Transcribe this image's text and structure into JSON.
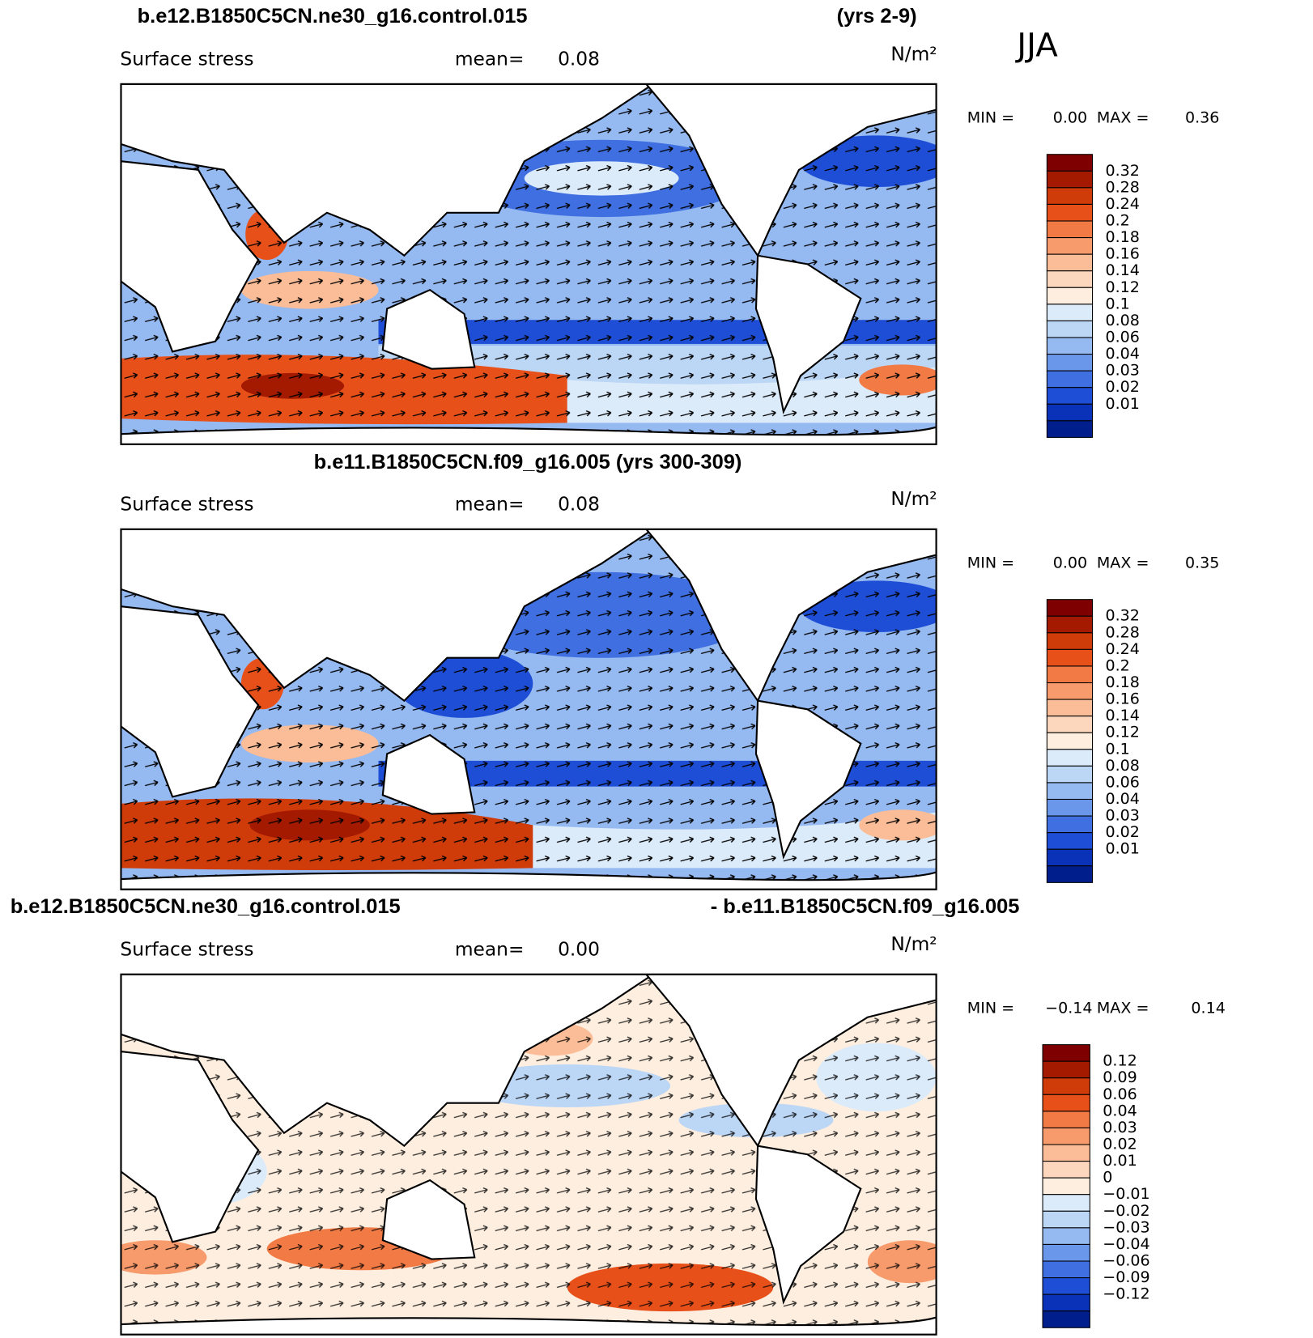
{
  "season": "JJA",
  "panels": [
    {
      "title": "b.e12.B1850C5CN.ne30_g16.control.015",
      "title_note": "(yrs 2-9)",
      "variable": "Surface stress",
      "mean_label": "mean=",
      "mean": "0.08",
      "units": "N/m²",
      "min_label": "MIN =",
      "min": "0.00",
      "max_label": "MAX =",
      "max": "0.36",
      "colorbar": {
        "labels": [
          "0.32",
          "0.28",
          "0.24",
          "0.2",
          "0.18",
          "0.16",
          "0.14",
          "0.12",
          "0.1",
          "0.08",
          "0.06",
          "0.04",
          "0.03",
          "0.02",
          "0.01"
        ],
        "colors": [
          "#7f0000",
          "#a31a00",
          "#d03b0a",
          "#e8501a",
          "#f27a45",
          "#f79a6c",
          "#fbbd97",
          "#fdd7bd",
          "#fdeedf",
          "#dcebfa",
          "#bcd6f6",
          "#95b9f1",
          "#6b97ea",
          "#3f6fe0",
          "#1e4ed6",
          "#0a32b8",
          "#001e8c"
        ]
      }
    },
    {
      "title": "b.e11.B1850C5CN.f09_g16.005 (yrs 300-309)",
      "variable": "Surface stress",
      "mean_label": "mean=",
      "mean": "0.08",
      "units": "N/m²",
      "min_label": "MIN =",
      "min": "0.00",
      "max_label": "MAX =",
      "max": "0.35",
      "colorbar": {
        "labels": [
          "0.32",
          "0.28",
          "0.24",
          "0.2",
          "0.18",
          "0.16",
          "0.14",
          "0.12",
          "0.1",
          "0.08",
          "0.06",
          "0.04",
          "0.03",
          "0.02",
          "0.01"
        ],
        "colors": [
          "#7f0000",
          "#a31a00",
          "#d03b0a",
          "#e8501a",
          "#f27a45",
          "#f79a6c",
          "#fbbd97",
          "#fdd7bd",
          "#fdeedf",
          "#dcebfa",
          "#bcd6f6",
          "#95b9f1",
          "#6b97ea",
          "#3f6fe0",
          "#1e4ed6",
          "#0a32b8",
          "#001e8c"
        ]
      }
    },
    {
      "title": "b.e12.B1850C5CN.ne30_g16.control.015",
      "title_note": "- b.e11.B1850C5CN.f09_g16.005",
      "variable": "Surface stress",
      "mean_label": "mean=",
      "mean": "0.00",
      "units": "N/m²",
      "min_label": "MIN =",
      "min": "−0.14",
      "max_label": "MAX =",
      "max": "0.14",
      "colorbar": {
        "labels": [
          "0.12",
          "0.09",
          "0.06",
          "0.04",
          "0.03",
          "0.02",
          "0.01",
          "0",
          "−0.01",
          "−0.02",
          "−0.03",
          "−0.04",
          "−0.06",
          "−0.09",
          "−0.12"
        ],
        "colors": [
          "#7f0000",
          "#a31a00",
          "#d03b0a",
          "#e8501a",
          "#f27a45",
          "#f79a6c",
          "#fbbd97",
          "#fdd7bd",
          "#fdeedf",
          "#dcebfa",
          "#bcd6f6",
          "#95b9f1",
          "#6b97ea",
          "#3f6fe0",
          "#1e4ed6",
          "#0a32b8",
          "#001e8c"
        ]
      }
    }
  ]
}
